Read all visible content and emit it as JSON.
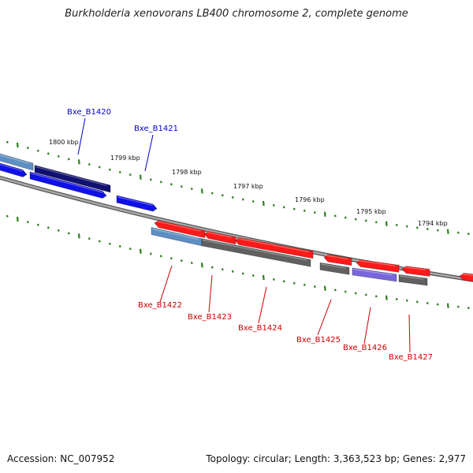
{
  "title": "Burkholderia xenovorans LB400 chromosome 2, complete genome",
  "footer": {
    "accession": "Accession: NC_007952",
    "stats": "Topology: circular; Length: 3,363,523 bp; Genes: 2,977"
  },
  "colors": {
    "backbone": "#8c8c8c",
    "tick": "#2e7d1f",
    "forward_label": "#0000cc",
    "reverse_label": "#cc0000",
    "red_gene": "#ff1a1a",
    "blue_gene": "#1010e8",
    "navy_gene": "#101070",
    "steel_gene": "#5e8fc4",
    "gray_gene": "#606060",
    "purple_gene": "#7766dd"
  },
  "scale_labels": [
    "1800 kbp",
    "1799 kbp",
    "1798 kbp",
    "1797 kbp",
    "1796 kbp",
    "1795 kbp",
    "1794 kbp"
  ],
  "gene_labels": {
    "forward": [
      "Bxe_B1420",
      "Bxe_B1421"
    ],
    "reverse": [
      "Bxe_B1422",
      "Bxe_B1423",
      "Bxe_B1424",
      "Bxe_B1425",
      "Bxe_B1426",
      "Bxe_B1427"
    ]
  }
}
